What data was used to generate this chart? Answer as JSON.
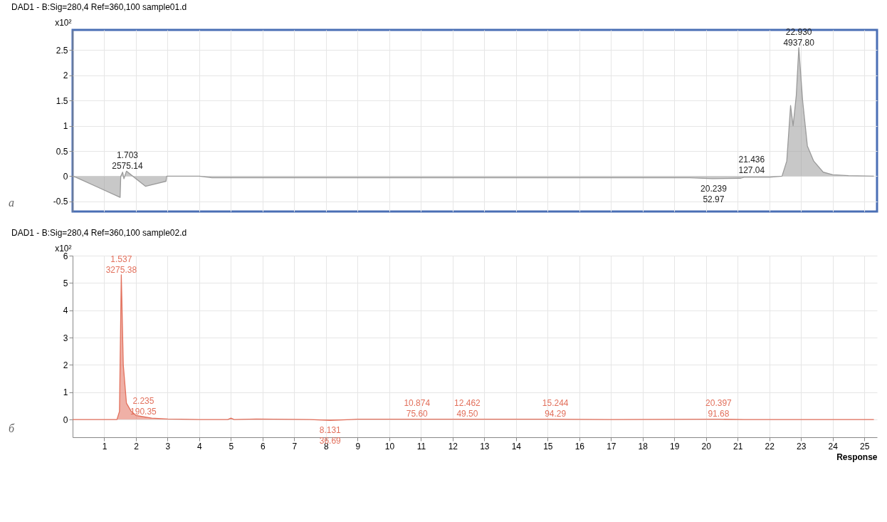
{
  "chart_data": [
    {
      "type": "area",
      "title": "DAD1 - B:Sig=280,4  Ref=360,100 sample01.d",
      "ylabel": "x10²",
      "tick_labels": "y",
      "grid": true,
      "xlim": [
        0,
        25.4
      ],
      "ylim": [
        -0.7,
        2.9
      ],
      "xticks": [
        1,
        2,
        3,
        4,
        5,
        6,
        7,
        8,
        9,
        10,
        11,
        12,
        13,
        14,
        15,
        16,
        17,
        18,
        19,
        20,
        21,
        22,
        23,
        24,
        25
      ],
      "yticks": [
        -0.5,
        0,
        0.5,
        1,
        1.5,
        2,
        2.5
      ],
      "series": [
        {
          "color": "#9a9a9a",
          "x": [
            0,
            0.1,
            0.8,
            1.5,
            1.52,
            1.58,
            1.62,
            1.7,
            1.8,
            2.3,
            2.95,
            2.97,
            4,
            4.4,
            19.5,
            20.2,
            21.1,
            21.2,
            22,
            22.4,
            22.55,
            22.67,
            22.75,
            22.85,
            22.93,
            23.05,
            23.2,
            23.4,
            23.7,
            24,
            24.5,
            25.3
          ],
          "values": [
            0,
            -0.02,
            -0.22,
            -0.42,
            0,
            0.08,
            -0.05,
            0.1,
            0.05,
            -0.2,
            -0.1,
            0,
            0,
            -0.03,
            -0.03,
            -0.05,
            -0.04,
            -0.02,
            -0.02,
            0,
            0.3,
            1.4,
            1.0,
            1.6,
            2.55,
            1.5,
            0.6,
            0.3,
            0.08,
            0.03,
            0.01,
            0
          ]
        }
      ],
      "annotations": [
        {
          "text": "1.703\n2575.14",
          "x": 1.73,
          "y": 0.1
        },
        {
          "text": "20.239\n52.97",
          "x": 20.24,
          "y": -0.05
        },
        {
          "text": "21.436\n127.04",
          "x": 21.44,
          "y": 0.02
        },
        {
          "text": "22.930\n4937.80",
          "x": 22.93,
          "y": 2.55
        },
        "а"
      ]
    },
    {
      "type": "area",
      "title": "DAD1 - B:Sig=280,4  Ref=360,100 sample02.d",
      "ylabel": "x10²",
      "xlabel": "Response",
      "grid": true,
      "xlim": [
        0,
        25.4
      ],
      "ylim": [
        -0.65,
        6
      ],
      "xticks": [
        1,
        2,
        3,
        4,
        5,
        6,
        7,
        8,
        9,
        10,
        11,
        12,
        13,
        14,
        15,
        16,
        17,
        18,
        19,
        20,
        21,
        22,
        23,
        24,
        25
      ],
      "yticks": [
        0,
        1,
        2,
        3,
        4,
        5,
        6
      ],
      "series": [
        {
          "color": "#e2705c",
          "x": [
            0,
            1.4,
            1.48,
            1.537,
            1.6,
            1.7,
            1.85,
            2,
            2.235,
            2.5,
            3,
            4,
            4.9,
            5,
            5.1,
            5.8,
            7.5,
            8.131,
            8.8,
            9,
            11,
            13,
            15,
            17,
            20.4,
            21.2,
            22,
            25.3
          ],
          "values": [
            0,
            0,
            0.3,
            5.3,
            2,
            0.6,
            0.3,
            0.15,
            0.1,
            0.05,
            0.02,
            0,
            0,
            0.05,
            0,
            0.02,
            0,
            -0.03,
            0,
            0.01,
            0.01,
            0.01,
            0.01,
            0,
            0.01,
            0,
            0,
            0
          ]
        }
      ],
      "annotations": [
        {
          "text": "1.537\n3275.38",
          "x": 1.537,
          "y": 5.3
        },
        {
          "text": "2.235\n190.35",
          "x": 2.235,
          "y": 0.1
        },
        {
          "text": "8.131\n36.69",
          "x": 8.131,
          "y": -0.03
        },
        {
          "text": "10.874\n75.60",
          "x": 10.874,
          "y": 0.02
        },
        {
          "text": "12.462\n49.50",
          "x": 12.462,
          "y": 0.02
        },
        {
          "text": "15.244\n94.29",
          "x": 15.244,
          "y": 0.02
        },
        {
          "text": "20.397\n91.68",
          "x": 20.397,
          "y": 0.02
        },
        "б"
      ]
    }
  ]
}
